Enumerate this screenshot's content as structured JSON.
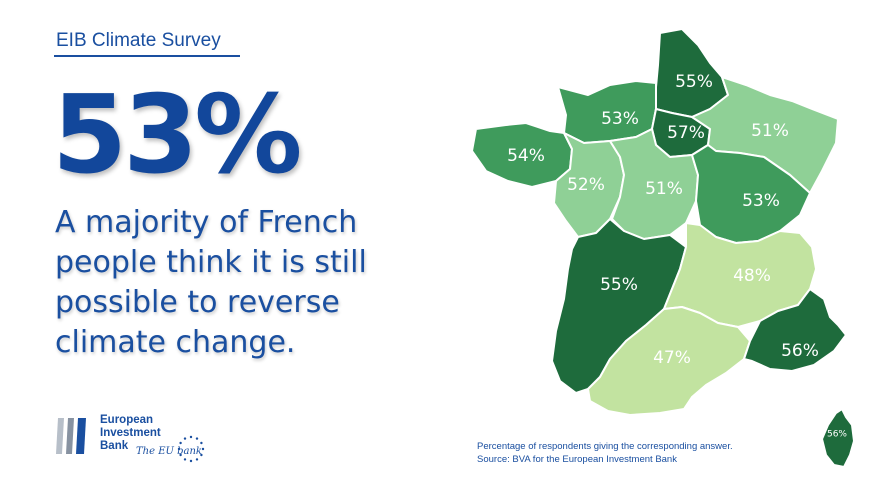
{
  "header": {
    "title": "EIB Climate Survey"
  },
  "hero": {
    "stat": "53%",
    "headline": "A majority of French people think it is still possible to reverse climate change."
  },
  "logo": {
    "name_line1": "European",
    "name_line2": "Investment",
    "name_line3": "Bank",
    "tagline": "The EU bank"
  },
  "caption": {
    "line1": "Percentage of respondents giving the corresponding answer.",
    "line2": "Source: BVA for the European Investment Bank"
  },
  "colors": {
    "brand_blue": "#1a4fa0",
    "dark_green": "#1e6b3c",
    "mid_green": "#3f9b5c",
    "light_green": "#8fd096",
    "pale_green": "#c2e3a0"
  },
  "map": {
    "regions": [
      {
        "id": "hauts-de-france",
        "label": "55%",
        "value": 55
      },
      {
        "id": "normandy",
        "label": "53%",
        "value": 53
      },
      {
        "id": "ile-de-france",
        "label": "57%",
        "value": 57
      },
      {
        "id": "grand-est",
        "label": "51%",
        "value": 51
      },
      {
        "id": "brittany",
        "label": "54%",
        "value": 54
      },
      {
        "id": "pays-de-la-loire",
        "label": "52%",
        "value": 52
      },
      {
        "id": "centre-val-de-loire",
        "label": "51%",
        "value": 51
      },
      {
        "id": "bourgogne-franche-comte",
        "label": "53%",
        "value": 53
      },
      {
        "id": "nouvelle-aquitaine",
        "label": "55%",
        "value": 55
      },
      {
        "id": "auvergne-rhone-alpes",
        "label": "48%",
        "value": 48
      },
      {
        "id": "occitanie",
        "label": "47%",
        "value": 47
      },
      {
        "id": "provence-alpes-cote-d-azur",
        "label": "56%",
        "value": 56
      },
      {
        "id": "corsica",
        "label": "56%",
        "value": 56
      }
    ]
  }
}
